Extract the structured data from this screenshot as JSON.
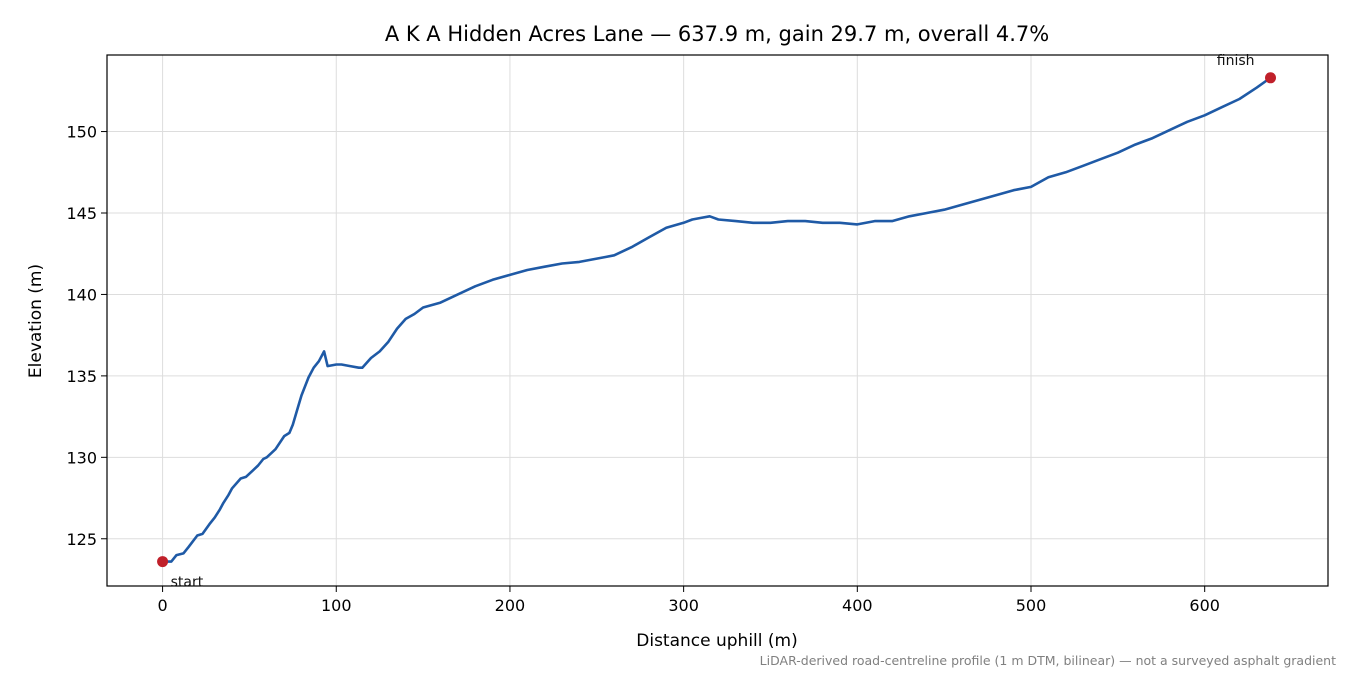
{
  "chart_data": {
    "type": "line",
    "title": "A K A Hidden Acres Lane — 637.9 m, gain 29.7 m, overall 4.7%",
    "xlabel": "Distance uphill (m)",
    "ylabel": "Elevation (m)",
    "footnote": "LiDAR-derived road-centreline profile (1 m DTM, bilinear) — not a surveyed asphalt gradient",
    "xlim": [
      -32,
      671
    ],
    "ylim": [
      122.1,
      154.7
    ],
    "xticks": [
      0,
      100,
      200,
      300,
      400,
      500,
      600
    ],
    "yticks": [
      125,
      130,
      135,
      140,
      145,
      150
    ],
    "grid": true,
    "line_color": "#1f5aa6",
    "marker_color": "#c0202a",
    "series": [
      {
        "name": "",
        "x": [
          0,
          5,
          8,
          12,
          15,
          20,
          23,
          27,
          30,
          33,
          35,
          38,
          40,
          45,
          48,
          52,
          55,
          58,
          60,
          65,
          70,
          73,
          75,
          78,
          80,
          84,
          87,
          90,
          93,
          95,
          100,
          103,
          108,
          113,
          115,
          120,
          125,
          130,
          135,
          140,
          145,
          150,
          160,
          170,
          180,
          190,
          200,
          210,
          220,
          230,
          240,
          250,
          255,
          260,
          270,
          280,
          290,
          300,
          305,
          310,
          315,
          320,
          330,
          340,
          350,
          360,
          370,
          380,
          390,
          400,
          410,
          420,
          430,
          440,
          450,
          460,
          470,
          480,
          490,
          500,
          510,
          520,
          530,
          540,
          550,
          560,
          570,
          580,
          590,
          600,
          610,
          620,
          630,
          637.9
        ],
        "y": [
          123.6,
          123.6,
          124.0,
          124.1,
          124.5,
          125.2,
          125.3,
          125.9,
          126.3,
          126.8,
          127.2,
          127.7,
          128.1,
          128.7,
          128.8,
          129.2,
          129.5,
          129.9,
          130.0,
          130.5,
          131.3,
          131.5,
          132.0,
          133.1,
          133.8,
          134.9,
          135.5,
          135.9,
          136.5,
          135.6,
          135.7,
          135.7,
          135.6,
          135.5,
          135.5,
          136.1,
          136.5,
          137.1,
          137.9,
          138.5,
          138.8,
          139.2,
          139.5,
          140.0,
          140.5,
          140.9,
          141.2,
          141.5,
          141.7,
          141.9,
          142.0,
          142.2,
          142.3,
          142.4,
          142.9,
          143.5,
          144.1,
          144.4,
          144.6,
          144.7,
          144.8,
          144.6,
          144.5,
          144.4,
          144.4,
          144.5,
          144.5,
          144.4,
          144.4,
          144.3,
          144.5,
          144.5,
          144.8,
          145.0,
          145.2,
          145.5,
          145.8,
          146.1,
          146.4,
          146.6,
          147.2,
          147.5,
          147.9,
          148.3,
          148.7,
          149.2,
          149.6,
          150.1,
          150.6,
          151.0,
          151.5,
          152.0,
          152.7,
          153.3
        ]
      }
    ],
    "annotations": [
      {
        "text": "start",
        "x": 0,
        "y": 123.6,
        "position": "below-right"
      },
      {
        "text": "finish",
        "x": 637.9,
        "y": 153.3,
        "position": "above-left"
      }
    ]
  }
}
